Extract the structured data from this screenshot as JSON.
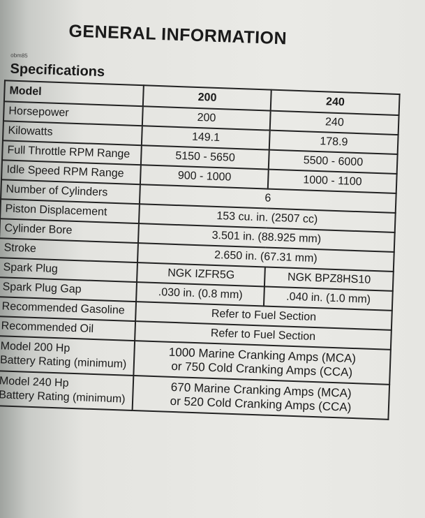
{
  "heading": "GENERAL INFORMATION",
  "section_code": "obm85",
  "section_title": "Specifications",
  "table": {
    "header": [
      "Model",
      "200",
      "240"
    ],
    "rows": [
      {
        "label": "Horsepower",
        "v200": "200",
        "v240": "240"
      },
      {
        "label": "Kilowatts",
        "v200": "149.1",
        "v240": "178.9"
      },
      {
        "label": "Full Throttle RPM Range",
        "v200": "5150 - 5650",
        "v240": "5500 - 6000"
      },
      {
        "label": "Idle Speed RPM Range",
        "v200": "900 - 1000",
        "v240": "1000 - 1100"
      },
      {
        "label": "Number of Cylinders",
        "both": "6"
      },
      {
        "label": "Piston Displacement",
        "both": "153 cu. in. (2507 cc)"
      },
      {
        "label": "Cylinder Bore",
        "both": "3.501 in. (88.925 mm)"
      },
      {
        "label": "Stroke",
        "both": "2.650 in. (67.31 mm)"
      },
      {
        "label": "Spark Plug",
        "v200": "NGK IZFR5G",
        "v240": "NGK BPZ8HS10"
      },
      {
        "label": "Spark Plug Gap",
        "v200": ".030 in. (0.8 mm)",
        "v240": ".040 in. (1.0 mm)"
      },
      {
        "label": "Recommended Gasoline",
        "both": "Refer to Fuel Section"
      },
      {
        "label": "Recommended Oil",
        "both": "Refer to Fuel Section"
      },
      {
        "label": "Model 200 Hp",
        "label2": "Battery Rating (minimum)",
        "both": "1000 Marine Cranking Amps (MCA)",
        "both2": "or 750 Cold Cranking Amps (CCA)"
      },
      {
        "label": "Model 240 Hp",
        "label2": "Battery Rating (minimum)",
        "both": "670 Marine Cranking Amps (MCA)",
        "both2": "or 520 Cold Cranking Amps (CCA)"
      }
    ]
  }
}
